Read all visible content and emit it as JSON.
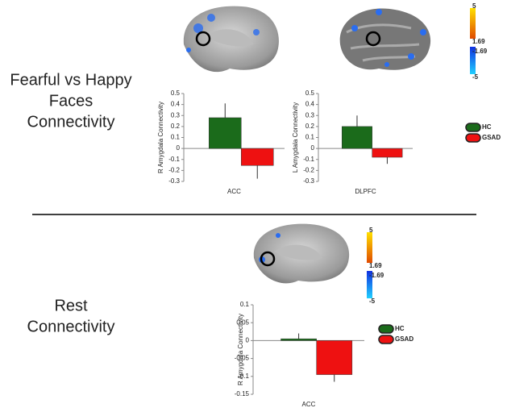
{
  "panels": [
    {
      "label_lines": [
        "Fearful vs Happy",
        "Faces",
        "Connectivity"
      ]
    },
    {
      "label_lines": [
        "Rest",
        "Connectivity"
      ]
    }
  ],
  "colorbars": [
    {
      "labels": [
        5,
        1.69,
        -1.69,
        -5
      ]
    },
    {
      "labels": [
        5,
        1.69,
        -1.69,
        -5
      ]
    }
  ],
  "chart_data": [
    {
      "type": "bar",
      "ylabel": "R Amygdala Connectivity",
      "categories": [
        "ACC"
      ],
      "series": [
        {
          "color": "#1b6b1b",
          "values": [
            0.28
          ],
          "errors": [
            0.13
          ]
        },
        {
          "color": "#ee1111",
          "values": [
            -0.155
          ],
          "errors": [
            0.12
          ]
        }
      ],
      "ylim": [
        -0.3,
        0.5
      ],
      "yticks": [
        0.5,
        0.4,
        0.3,
        0.2,
        0.1,
        0,
        -0.1,
        -0.2,
        -0.3
      ]
    },
    {
      "type": "bar",
      "ylabel": "L Amygdala Connectivity",
      "categories": [
        "DLPFC"
      ],
      "series": [
        {
          "name": "HC",
          "color": "#1b6b1b",
          "values": [
            0.2
          ],
          "errors": [
            0.1
          ]
        },
        {
          "name": "GSAD",
          "color": "#ee1111",
          "values": [
            -0.08
          ],
          "errors": [
            0.06
          ]
        }
      ],
      "ylim": [
        -0.3,
        0.5
      ],
      "yticks": [
        0.5,
        0.4,
        0.3,
        0.2,
        0.1,
        0,
        -0.1,
        -0.2,
        -0.3
      ],
      "legend": "right"
    },
    {
      "type": "bar",
      "ylabel": "R Amygdala Connectivity",
      "categories": [
        "ACC"
      ],
      "series": [
        {
          "name": "HC",
          "color": "#1b6b1b",
          "values": [
            0.005
          ],
          "errors": [
            0.015
          ]
        },
        {
          "name": "GSAD",
          "color": "#ee1111",
          "values": [
            -0.095
          ],
          "errors": [
            0.02
          ]
        }
      ],
      "ylim": [
        -0.15,
        0.1
      ],
      "yticks": [
        0.1,
        0.05,
        0,
        -0.05,
        -0.1,
        -0.15
      ],
      "legend": "right"
    }
  ]
}
